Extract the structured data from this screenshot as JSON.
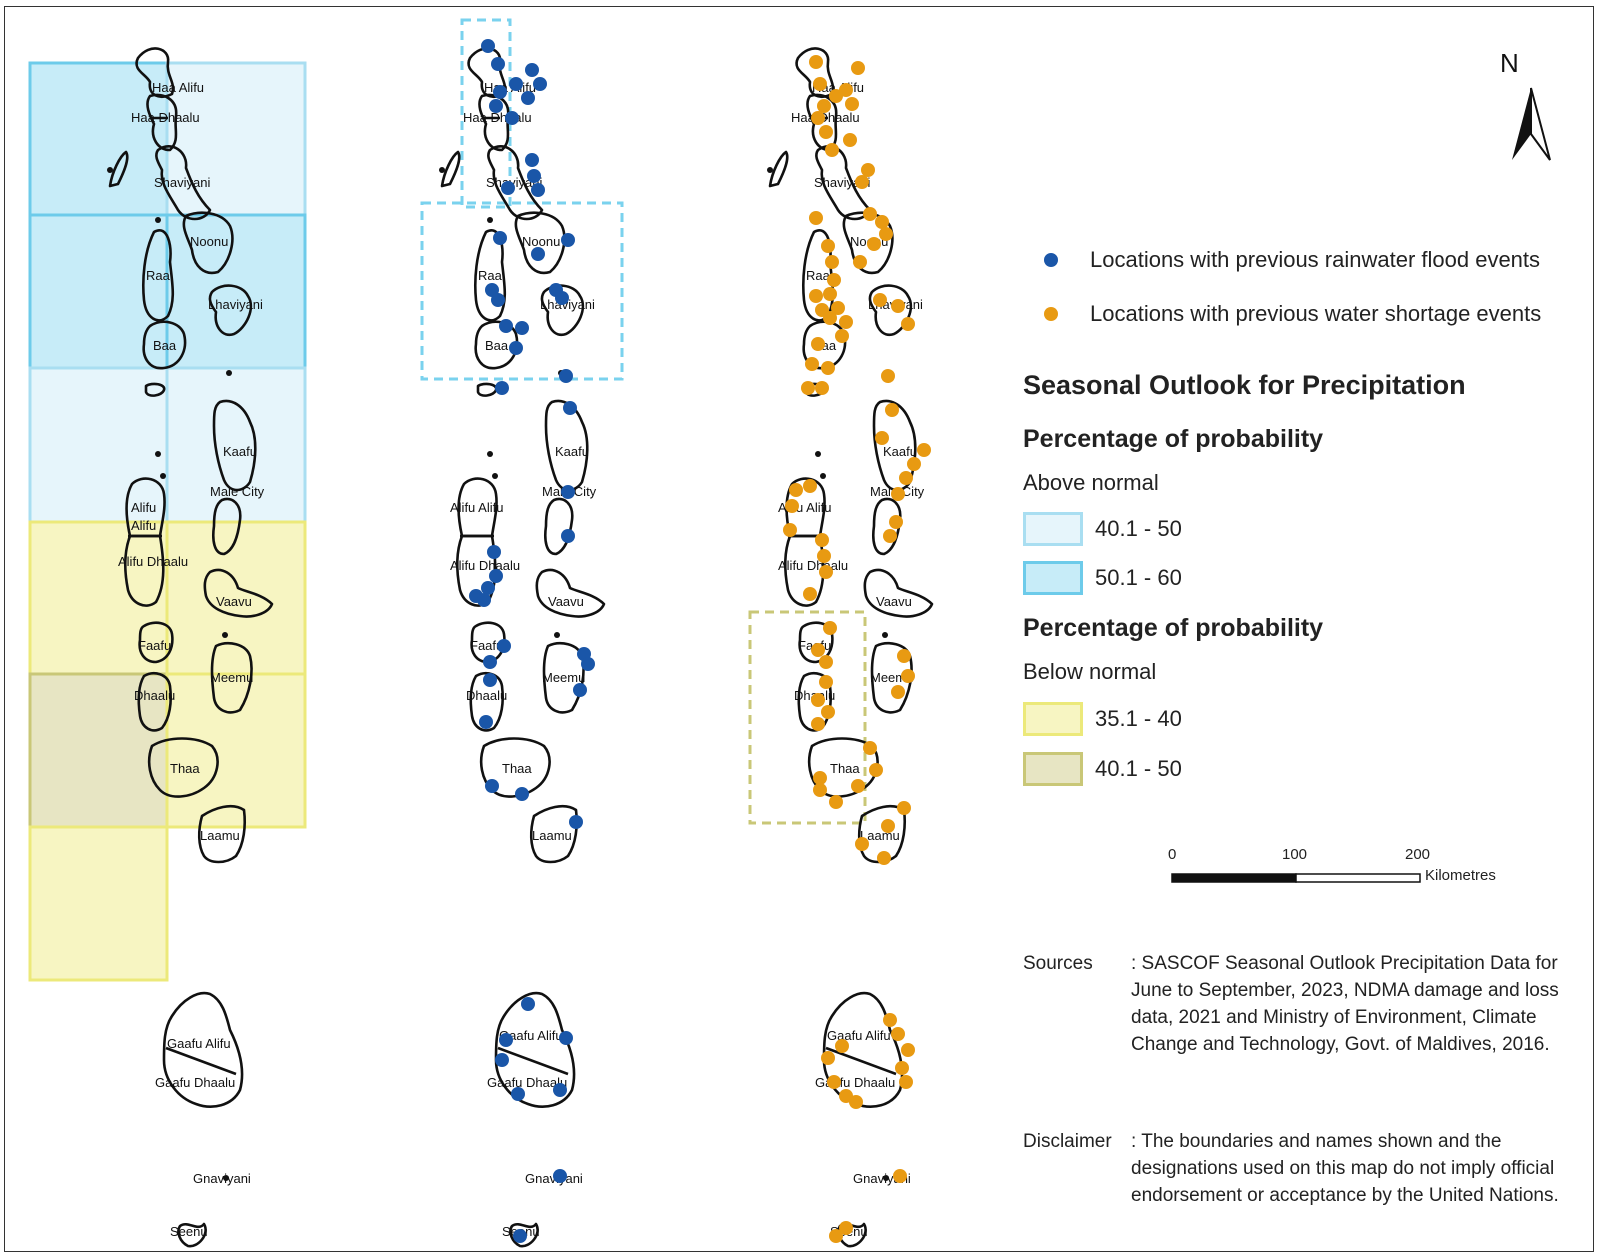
{
  "map": {
    "north_label": "N",
    "atoll_labels": [
      "Haa Alifu",
      "Haa Dhaalu",
      "Shaviyani",
      "Noonu",
      "Raa",
      "Lhaviyani",
      "Baa",
      "Kaafu",
      "Male City",
      "Alifu Alifu",
      "Alifu Dhaalu",
      "Vaavu",
      "Faafu",
      "Meemu",
      "Dhaalu",
      "Thaa",
      "Laamu",
      "Gaafu Alifu",
      "Gaafu Dhaalu",
      "Gnaviyani",
      "Seenu"
    ],
    "panel1_labels": [
      "Haa Alifu",
      "Haa Dhaalu",
      "Shaviyani",
      "Noonu",
      "Raa",
      "Lhaviyani",
      "Baa",
      "Kaafu",
      "Male City",
      "Alifu",
      "Alifu",
      "Alifu Dhaalu",
      "Vaavu",
      "Faafu",
      "Meemu",
      "Dhaalu",
      "Thaa",
      "Laamu",
      "Gaafu Alifu",
      "Gaafu Dhaalu",
      "Gnaviyani",
      "Seenu"
    ],
    "colors": {
      "flood_dot": "#1a56a8",
      "shortage_dot": "#e89a12",
      "above_40_50_fill": "#e6f5fb",
      "above_40_50_stroke": "#a9def1",
      "above_50_60_fill": "#c7ecf8",
      "above_50_60_stroke": "#6dcbea",
      "below_35_40_fill": "#f7f5c2",
      "below_35_40_stroke": "#ece97a",
      "below_40_50_fill": "#e7e5c3",
      "below_40_50_stroke": "#c9c777",
      "dashed_blue": "#7ad2ee",
      "dashed_olive": "#c9c777"
    }
  },
  "legend": {
    "flood_label": "Locations with previous rainwater flood events",
    "shortage_label": "Locations with previous water shortage events",
    "title": "Seasonal Outlook for Precipitation",
    "above_heading": "Percentage of probability",
    "above_category": "Above normal",
    "above_classes": [
      "40.1 - 50",
      "50.1 - 60"
    ],
    "below_heading": "Percentage of probability",
    "below_category": "Below normal",
    "below_classes": [
      "35.1 - 40",
      "40.1 - 50"
    ]
  },
  "scale": {
    "ticks": [
      "0",
      "100",
      "200"
    ],
    "unit": "Kilometres"
  },
  "sources": {
    "label": "Sources",
    "text": ": SASCOF Seasonal Outlook Precipitation Data for June to September, 2023, NDMA damage and loss data, 2021  and Ministry of Environment, Climate Change and Technology, Govt. of Maldives, 2016."
  },
  "disclaimer": {
    "label": "Disclaimer",
    "text": ": The boundaries and names shown and the designations used on this map do not imply official endorsement or acceptance by the United Nations."
  }
}
